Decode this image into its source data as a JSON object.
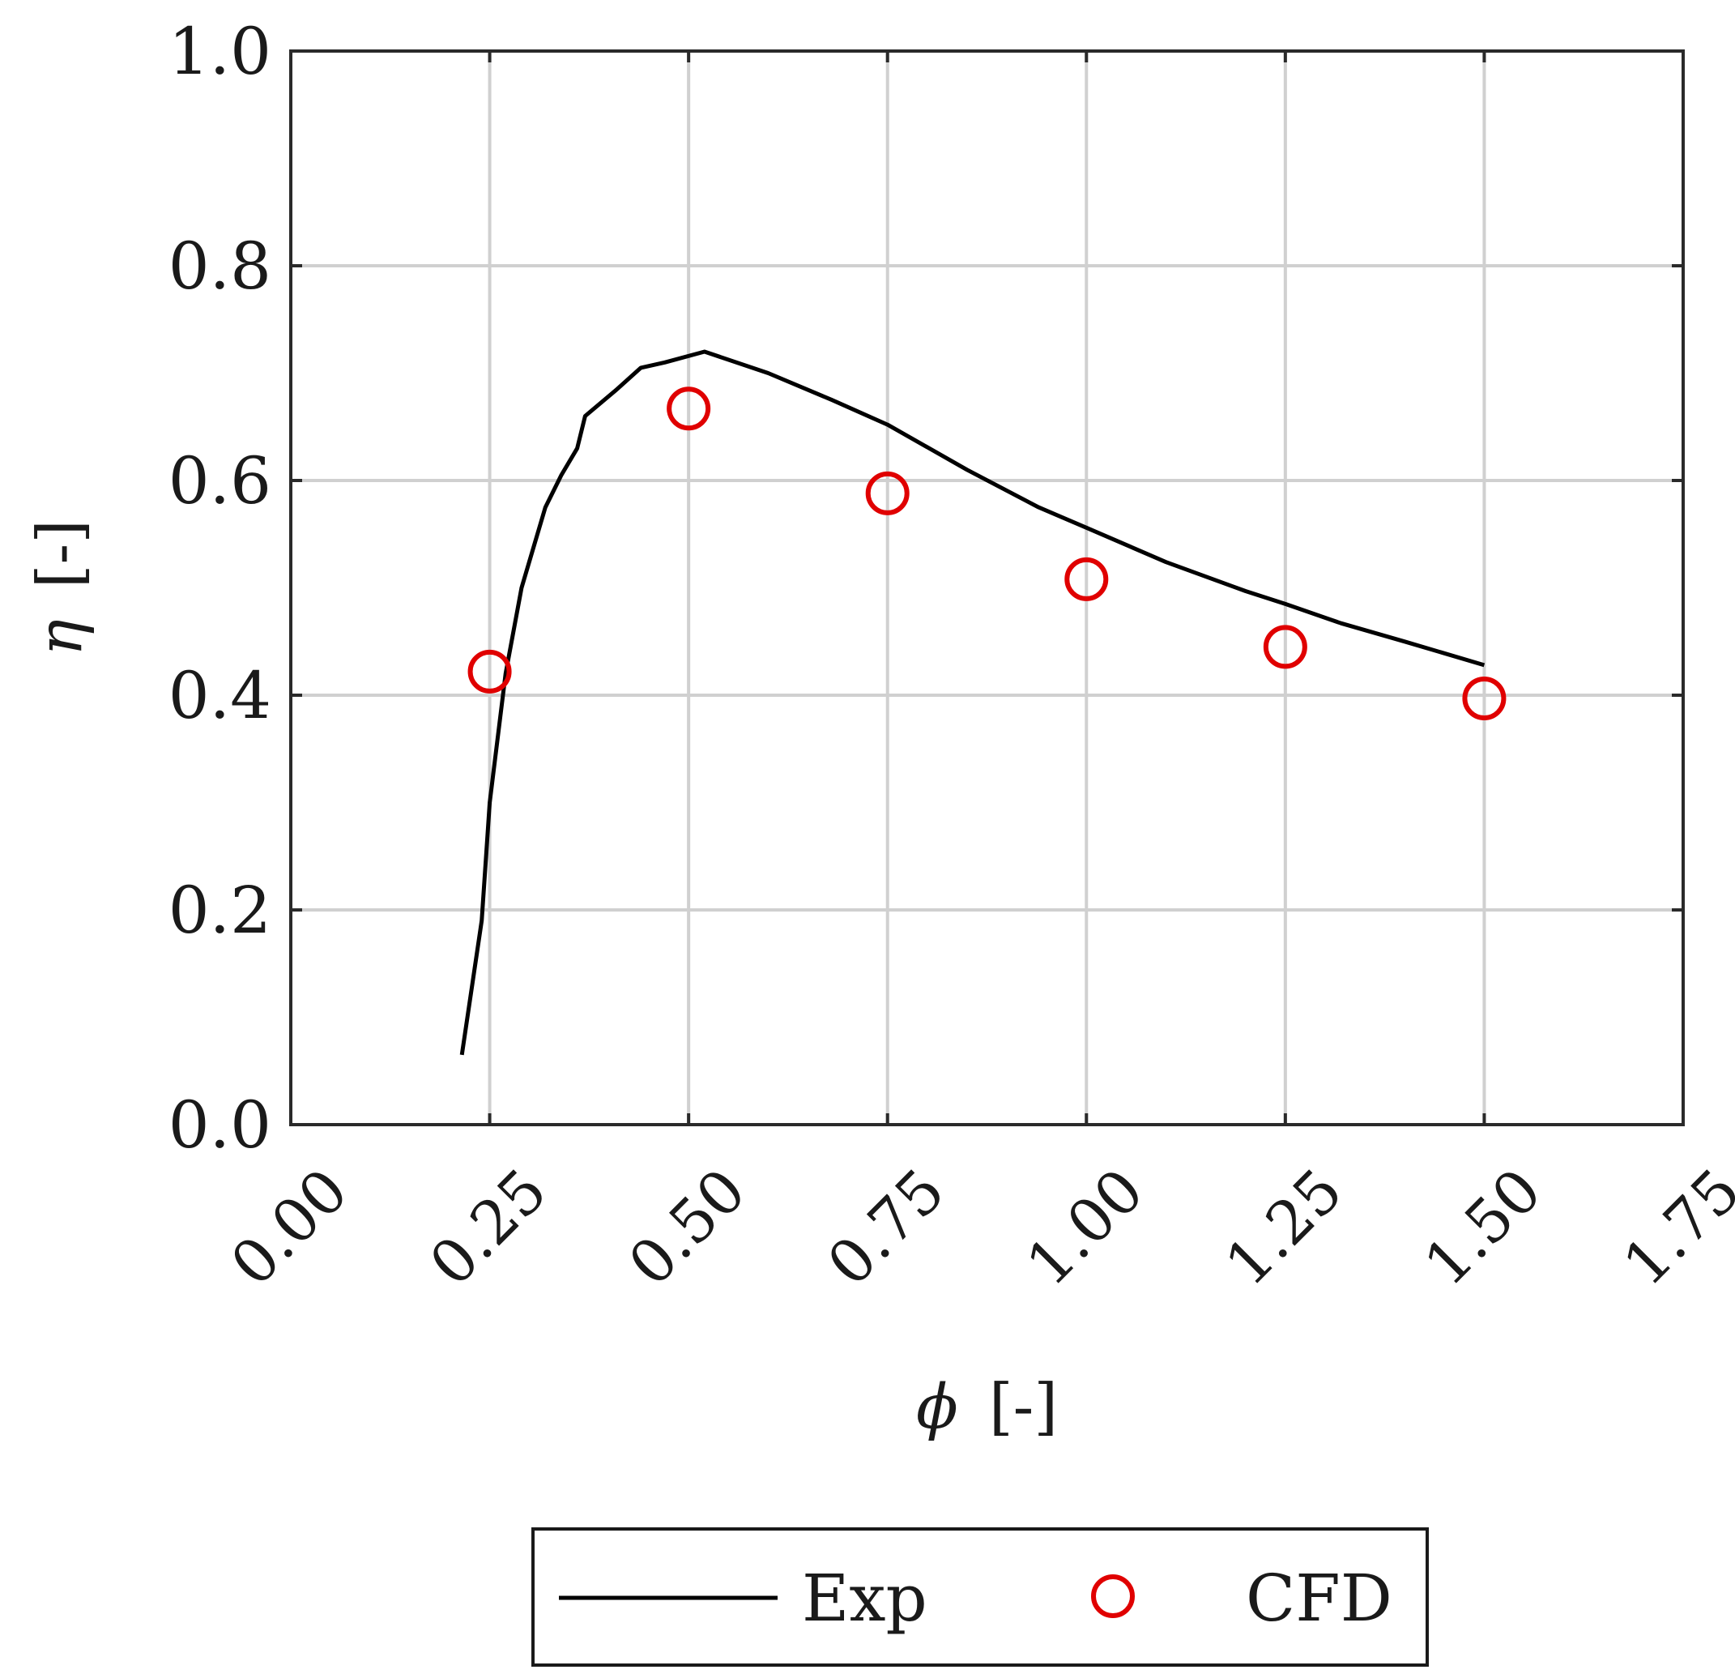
{
  "chart_data": {
    "type": "line",
    "xlabel_symbol": "ϕ",
    "xlabel_unit": "[-]",
    "ylabel_symbol": "η",
    "ylabel_unit": "[-]",
    "xlim": [
      0,
      1.75
    ],
    "ylim": [
      0,
      1.0
    ],
    "xticks": [
      0,
      0.25,
      0.5,
      0.75,
      1.0,
      1.25,
      1.5,
      1.75
    ],
    "xtick_labels": [
      "0.00",
      "0.25",
      "0.50",
      "0.75",
      "1.00",
      "1.25",
      "1.50",
      "1.75"
    ],
    "yticks": [
      0,
      0.2,
      0.4,
      0.6,
      0.8,
      1.0
    ],
    "ytick_labels": [
      "0.0",
      "0.2",
      "0.4",
      "0.6",
      "0.8",
      "1.0"
    ],
    "grid": true,
    "legend_placement": "bottom-center, below plot",
    "series": [
      {
        "name": "Exp",
        "kind": "line",
        "color": "#000000",
        "points": [
          [
            0.215,
            0.065
          ],
          [
            0.24,
            0.19
          ],
          [
            0.25,
            0.3
          ],
          [
            0.27,
            0.42
          ],
          [
            0.29,
            0.5
          ],
          [
            0.32,
            0.575
          ],
          [
            0.34,
            0.605
          ],
          [
            0.36,
            0.63
          ],
          [
            0.37,
            0.66
          ],
          [
            0.41,
            0.685
          ],
          [
            0.44,
            0.705
          ],
          [
            0.47,
            0.71
          ],
          [
            0.52,
            0.72
          ],
          [
            0.6,
            0.7
          ],
          [
            0.68,
            0.675
          ],
          [
            0.75,
            0.652
          ],
          [
            0.85,
            0.61
          ],
          [
            0.94,
            0.575
          ],
          [
            1.0,
            0.556
          ],
          [
            1.1,
            0.524
          ],
          [
            1.2,
            0.497
          ],
          [
            1.25,
            0.485
          ],
          [
            1.32,
            0.467
          ],
          [
            1.4,
            0.45
          ],
          [
            1.5,
            0.428
          ]
        ]
      },
      {
        "name": "CFD",
        "kind": "scatter",
        "color": "#e00000",
        "points": [
          [
            0.25,
            0.422
          ],
          [
            0.5,
            0.667
          ],
          [
            0.75,
            0.588
          ],
          [
            1.0,
            0.508
          ],
          [
            1.25,
            0.445
          ],
          [
            1.5,
            0.397
          ]
        ]
      }
    ]
  }
}
